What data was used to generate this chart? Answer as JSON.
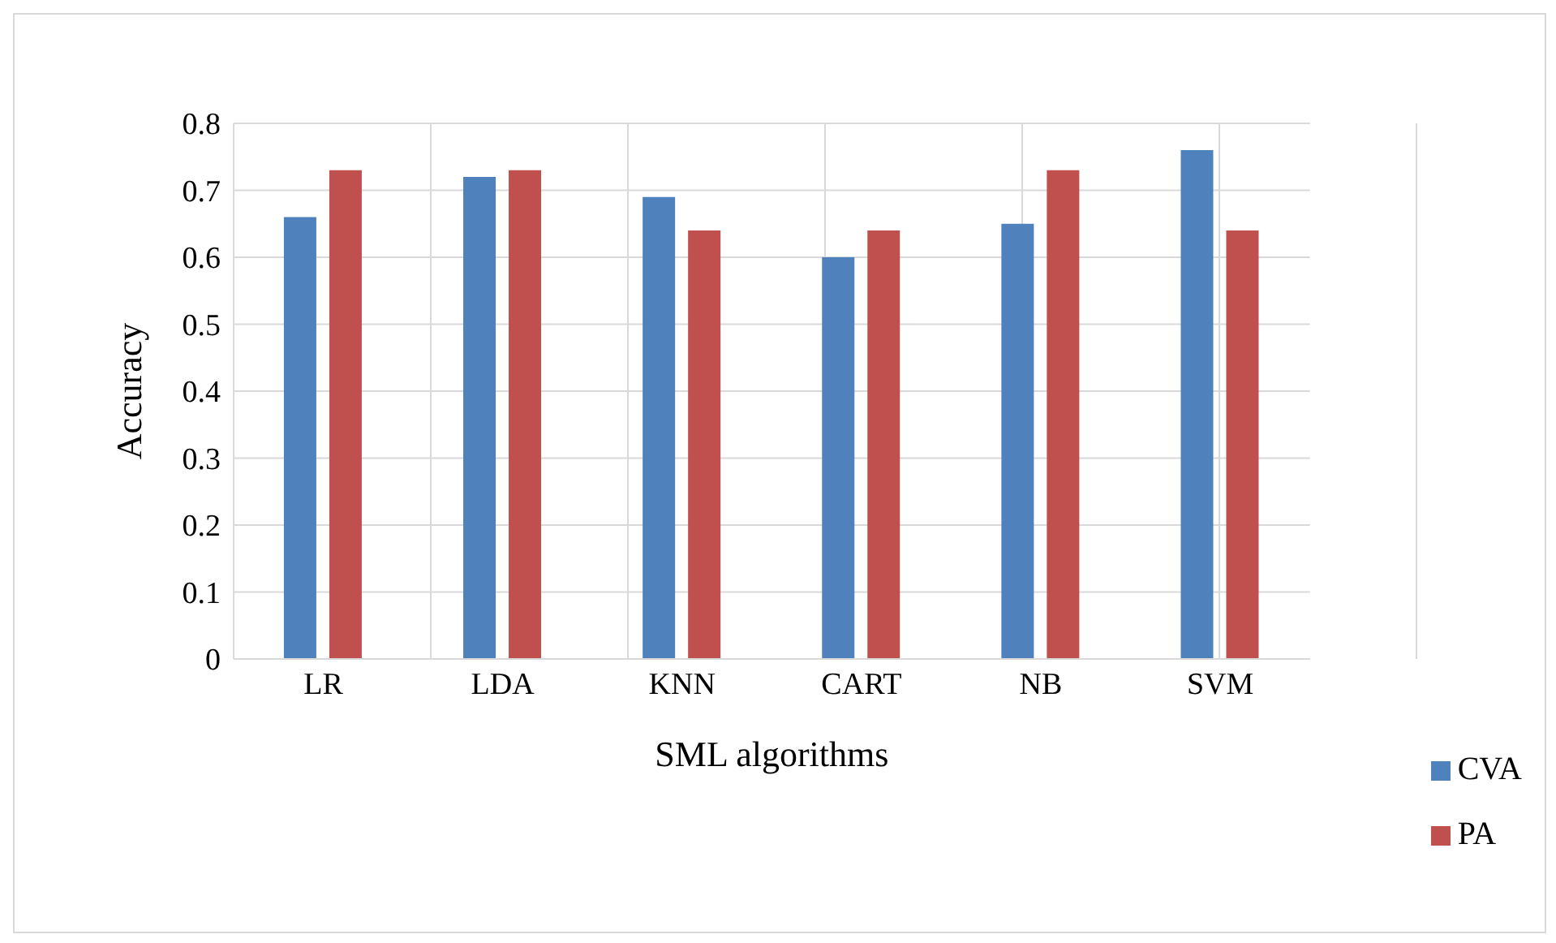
{
  "chart_data": {
    "type": "bar",
    "xlabel": "SML algorithms",
    "ylabel": "Accuracy",
    "categories": [
      "LR",
      "LDA",
      "KNN",
      "CART",
      "NB",
      "SVM"
    ],
    "series": [
      {
        "name": "CVA",
        "color": "#4f81bd",
        "values": [
          0.66,
          0.72,
          0.69,
          0.6,
          0.65,
          0.76
        ]
      },
      {
        "name": "PA",
        "color": "#c0504d",
        "values": [
          0.73,
          0.73,
          0.64,
          0.64,
          0.73,
          0.64
        ]
      }
    ],
    "ylim": [
      0,
      0.8
    ],
    "yticks": [
      0,
      0.1,
      0.2,
      0.3,
      0.4,
      0.5,
      0.6,
      0.7,
      0.8
    ],
    "grid": true,
    "legend": "bottom right"
  }
}
